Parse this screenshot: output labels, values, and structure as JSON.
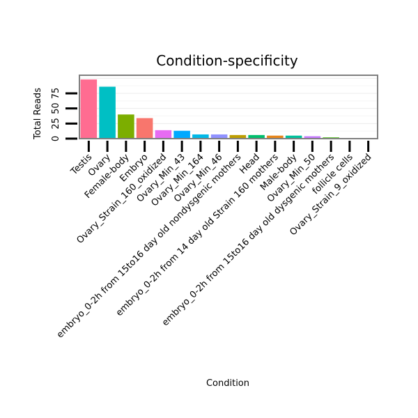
{
  "chart_data": {
    "type": "bar",
    "title": "Condition-specificity",
    "xlabel": "Condition",
    "ylabel": "Total Reads",
    "ylim": [
      0,
      105
    ],
    "yticks": [
      0,
      25,
      50,
      75
    ],
    "grid": true,
    "categories": [
      "Testis",
      "Ovary",
      "Female-body",
      "Embryo",
      "Ovary_Strain_160_oxidized",
      "Ovary_Min_43",
      "Ovary_Min_164",
      "Ovary_Min_46",
      "embryo_0-2h from 15to16 day old nondysgenic mothers",
      "Head",
      "embryo_0-2h from 14 day old Strain 160 mothers",
      "Male-body",
      "Ovary_Min_50",
      "embryo_0-2h from 15to16 day old dysgenic mothers",
      "follicle cells",
      "Ovary_Strain_9_oxidized"
    ],
    "values": [
      98,
      86,
      40,
      34,
      14,
      13,
      7,
      7,
      6,
      6,
      5,
      5,
      4,
      2,
      1,
      1
    ],
    "colors": [
      "#FF6C91",
      "#00BFC4",
      "#7CAE00",
      "#F8766D",
      "#E76BF3",
      "#00A9FF",
      "#00B8E7",
      "#8F91FF",
      "#BD9D00",
      "#00BE6C",
      "#E7861B",
      "#00C19C",
      "#C77CFF",
      "#39B600",
      "#FF62BC",
      "#D89000"
    ]
  }
}
